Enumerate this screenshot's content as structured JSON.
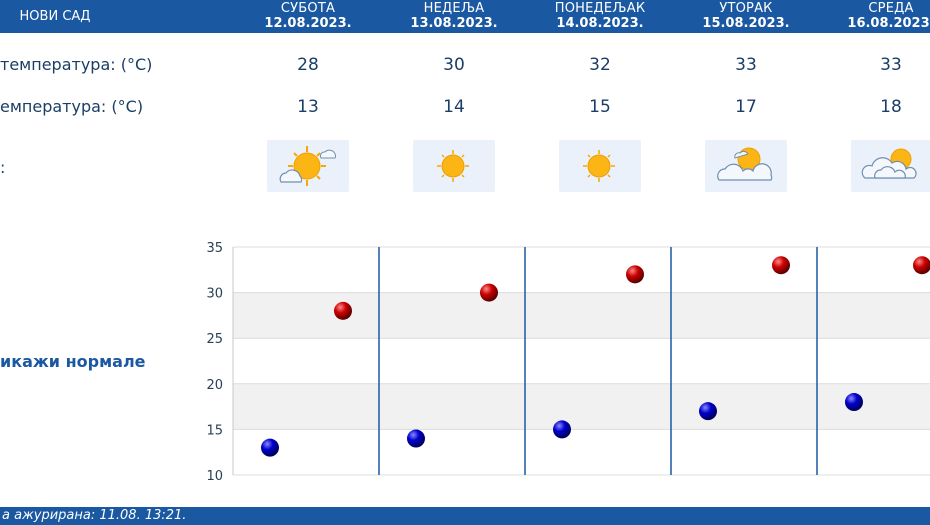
{
  "header": {
    "city": "НОВИ САД",
    "days": [
      {
        "name": "СУБОТА",
        "date": "12.08.2023."
      },
      {
        "name": "НЕДЕЉА",
        "date": "13.08.2023."
      },
      {
        "name": "ПОНЕДЕЉАК",
        "date": "14.08.2023."
      },
      {
        "name": "УТОРАК",
        "date": "15.08.2023."
      },
      {
        "name": "СРЕДА",
        "date": "16.08.2023."
      }
    ]
  },
  "rows": {
    "max_label": "температура: (°C)",
    "min_label": "емпература: (°C)",
    "weather_label": ":",
    "max_values": [
      "28",
      "30",
      "32",
      "33",
      "33"
    ],
    "min_values": [
      "13",
      "14",
      "15",
      "17",
      "18"
    ],
    "icons": [
      "sun-cloud-icon",
      "sun-icon",
      "sun-icon",
      "partly-cloudy-icon",
      "cloudy-icon"
    ]
  },
  "normals_label": "икажи нормале",
  "footer": {
    "updated": "а ажурирана:  11.08.  13:21."
  },
  "chart_data": {
    "type": "scatter",
    "categories": [
      "СУБОТА",
      "НЕДЕЉА",
      "ПОНЕДЕЉАК",
      "УТОРАК",
      "СРЕДА"
    ],
    "series": [
      {
        "values": [
          28,
          30,
          32,
          33,
          33
        ],
        "color": "#cc0000"
      },
      {
        "values": [
          13,
          14,
          15,
          17,
          18
        ],
        "color": "#0000cc"
      }
    ],
    "yticks": [
      35,
      30,
      25,
      20,
      15,
      10
    ],
    "ylim": [
      10,
      35
    ],
    "grid": true
  }
}
